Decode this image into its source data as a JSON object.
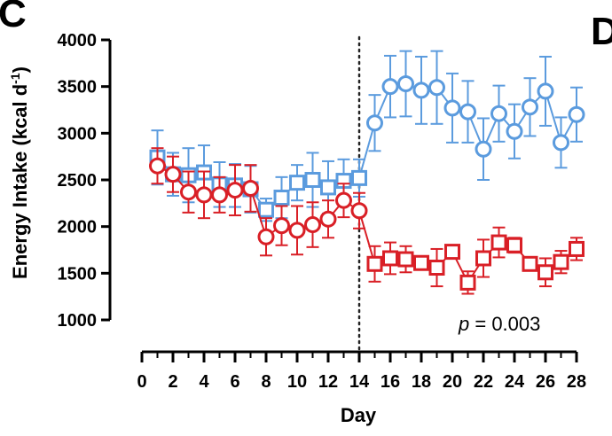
{
  "panel_label": "C",
  "next_panel_label": "D",
  "chart_data": {
    "type": "line",
    "xlabel": "Day",
    "ylabel_main": "Energy Intake (kcal d",
    "ylabel_sup": "-1",
    "ylabel_end": ")",
    "xlim": [
      0,
      28
    ],
    "ylim": [
      1000,
      4000
    ],
    "x_ticks": [
      0,
      2,
      4,
      6,
      8,
      10,
      12,
      14,
      16,
      18,
      20,
      22,
      24,
      26,
      28
    ],
    "y_ticks": [
      1000,
      1500,
      2000,
      2500,
      3000,
      3500,
      4000
    ],
    "x_minor_ticks": [
      1,
      3,
      5,
      7,
      9,
      11,
      13,
      15,
      17,
      19,
      21,
      23,
      25,
      27
    ],
    "divider_x": 14,
    "annotation_p": "p",
    "annotation_value": " = 0.003",
    "colors": {
      "blue": "#5b9bde",
      "red": "#d91f26"
    },
    "series": [
      {
        "color": "blue",
        "points": [
          {
            "x": 1,
            "y": 2740,
            "err": 290,
            "marker": "square"
          },
          {
            "x": 2,
            "y": 2560,
            "err": 230,
            "marker": "square"
          },
          {
            "x": 3,
            "y": 2550,
            "err": 290,
            "marker": "square"
          },
          {
            "x": 4,
            "y": 2580,
            "err": 290,
            "marker": "square"
          },
          {
            "x": 5,
            "y": 2450,
            "err": 240,
            "marker": "square"
          },
          {
            "x": 6,
            "y": 2440,
            "err": 230,
            "marker": "square"
          },
          {
            "x": 7,
            "y": 2400,
            "err": 250,
            "marker": "square"
          },
          {
            "x": 8,
            "y": 2180,
            "err": 120,
            "marker": "square"
          },
          {
            "x": 9,
            "y": 2310,
            "err": 220,
            "marker": "square"
          },
          {
            "x": 10,
            "y": 2470,
            "err": 190,
            "marker": "square"
          },
          {
            "x": 11,
            "y": 2500,
            "err": 290,
            "marker": "square"
          },
          {
            "x": 12,
            "y": 2420,
            "err": 280,
            "marker": "square"
          },
          {
            "x": 13,
            "y": 2490,
            "err": 230,
            "marker": "square"
          },
          {
            "x": 14,
            "y": 2520,
            "err": 200,
            "marker": "square"
          },
          {
            "x": 15,
            "y": 3110,
            "err": 300,
            "marker": "circle"
          },
          {
            "x": 16,
            "y": 3500,
            "err": 330,
            "marker": "circle"
          },
          {
            "x": 17,
            "y": 3530,
            "err": 350,
            "marker": "circle"
          },
          {
            "x": 18,
            "y": 3460,
            "err": 360,
            "marker": "circle"
          },
          {
            "x": 19,
            "y": 3490,
            "err": 390,
            "marker": "circle"
          },
          {
            "x": 20,
            "y": 3270,
            "err": 370,
            "marker": "circle"
          },
          {
            "x": 21,
            "y": 3230,
            "err": 330,
            "marker": "circle"
          },
          {
            "x": 22,
            "y": 2830,
            "err": 330,
            "marker": "circle"
          },
          {
            "x": 23,
            "y": 3210,
            "err": 300,
            "marker": "circle"
          },
          {
            "x": 24,
            "y": 3020,
            "err": 290,
            "marker": "circle"
          },
          {
            "x": 25,
            "y": 3280,
            "err": 310,
            "marker": "circle"
          },
          {
            "x": 26,
            "y": 3450,
            "err": 370,
            "marker": "circle"
          },
          {
            "x": 27,
            "y": 2900,
            "err": 270,
            "marker": "circle"
          },
          {
            "x": 28,
            "y": 3200,
            "err": 290,
            "marker": "circle"
          }
        ]
      },
      {
        "color": "red",
        "points": [
          {
            "x": 1,
            "y": 2650,
            "err": 190,
            "marker": "circle"
          },
          {
            "x": 2,
            "y": 2560,
            "err": 190,
            "marker": "circle"
          },
          {
            "x": 3,
            "y": 2370,
            "err": 220,
            "marker": "circle"
          },
          {
            "x": 4,
            "y": 2340,
            "err": 250,
            "marker": "circle"
          },
          {
            "x": 5,
            "y": 2340,
            "err": 190,
            "marker": "circle"
          },
          {
            "x": 6,
            "y": 2390,
            "err": 270,
            "marker": "circle"
          },
          {
            "x": 7,
            "y": 2410,
            "err": 250,
            "marker": "circle"
          },
          {
            "x": 8,
            "y": 1890,
            "err": 200,
            "marker": "circle"
          },
          {
            "x": 9,
            "y": 2010,
            "err": 210,
            "marker": "circle"
          },
          {
            "x": 10,
            "y": 1960,
            "err": 260,
            "marker": "circle"
          },
          {
            "x": 11,
            "y": 2020,
            "err": 240,
            "marker": "circle"
          },
          {
            "x": 12,
            "y": 2080,
            "err": 200,
            "marker": "circle"
          },
          {
            "x": 13,
            "y": 2280,
            "err": 180,
            "marker": "circle"
          },
          {
            "x": 14,
            "y": 2170,
            "err": 190,
            "marker": "circle"
          },
          {
            "x": 15,
            "y": 1600,
            "err": 190,
            "marker": "square"
          },
          {
            "x": 16,
            "y": 1660,
            "err": 170,
            "marker": "square"
          },
          {
            "x": 17,
            "y": 1650,
            "err": 140,
            "marker": "square"
          },
          {
            "x": 18,
            "y": 1610,
            "err": 70,
            "marker": "square"
          },
          {
            "x": 19,
            "y": 1560,
            "err": 200,
            "marker": "square"
          },
          {
            "x": 20,
            "y": 1730,
            "err": 50,
            "marker": "square"
          },
          {
            "x": 21,
            "y": 1400,
            "err": 120,
            "marker": "square"
          },
          {
            "x": 22,
            "y": 1660,
            "err": 200,
            "marker": "square"
          },
          {
            "x": 23,
            "y": 1830,
            "err": 160,
            "marker": "square"
          },
          {
            "x": 24,
            "y": 1800,
            "err": 80,
            "marker": "square"
          },
          {
            "x": 25,
            "y": 1600,
            "err": 70,
            "marker": "square"
          },
          {
            "x": 26,
            "y": 1510,
            "err": 150,
            "marker": "square"
          },
          {
            "x": 27,
            "y": 1620,
            "err": 120,
            "marker": "square"
          },
          {
            "x": 28,
            "y": 1760,
            "err": 120,
            "marker": "square"
          }
        ]
      }
    ]
  }
}
